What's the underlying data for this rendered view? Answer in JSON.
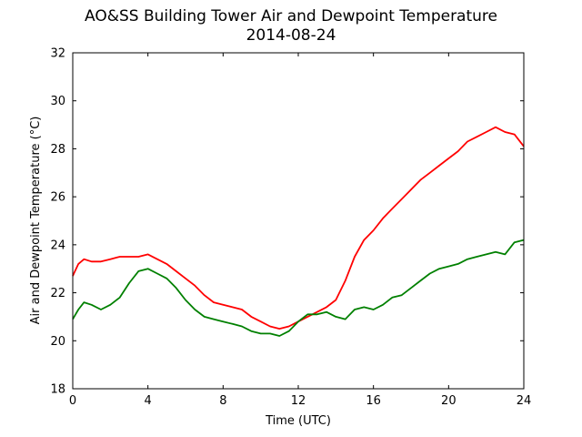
{
  "chart_data": {
    "type": "line",
    "title": "AO&SS Building Tower Air and Dewpoint Temperature",
    "subtitle": "2014-08-24",
    "xlabel": "Time (UTC)",
    "ylabel": "Air and Dewpoint Temperature (°C)",
    "xlim": [
      0,
      24
    ],
    "ylim": [
      18,
      32
    ],
    "xticks": [
      0,
      4,
      8,
      12,
      16,
      20,
      24
    ],
    "yticks": [
      18,
      20,
      22,
      24,
      26,
      28,
      30,
      32
    ],
    "grid": false,
    "series": [
      {
        "color": "#ff0000",
        "x": [
          0,
          0.3,
          0.6,
          1,
          1.5,
          2,
          2.5,
          3,
          3.5,
          4,
          4.5,
          5,
          5.5,
          6,
          6.5,
          7,
          7.5,
          8,
          8.5,
          9,
          9.5,
          10,
          10.5,
          11,
          11.5,
          12,
          12.5,
          13,
          13.5,
          14,
          14.5,
          15,
          15.5,
          16,
          16.5,
          17,
          17.5,
          18,
          18.5,
          19,
          19.5,
          20,
          20.5,
          21,
          21.5,
          22,
          22.5,
          23,
          23.5,
          24
        ],
        "y": [
          22.7,
          23.2,
          23.4,
          23.3,
          23.3,
          23.4,
          23.5,
          23.5,
          23.5,
          23.6,
          23.4,
          23.2,
          22.9,
          22.6,
          22.3,
          21.9,
          21.6,
          21.5,
          21.4,
          21.3,
          21.0,
          20.8,
          20.6,
          20.5,
          20.6,
          20.8,
          21.0,
          21.2,
          21.4,
          21.7,
          22.5,
          23.5,
          24.2,
          24.6,
          25.1,
          25.5,
          25.9,
          26.3,
          26.7,
          27.0,
          27.3,
          27.6,
          27.9,
          28.3,
          28.5,
          28.7,
          28.9,
          28.7,
          28.6,
          28.1
        ]
      },
      {
        "color": "#008000",
        "x": [
          0,
          0.3,
          0.6,
          1,
          1.5,
          2,
          2.5,
          3,
          3.5,
          4,
          4.5,
          5,
          5.5,
          6,
          6.5,
          7,
          7.5,
          8,
          8.5,
          9,
          9.5,
          10,
          10.5,
          11,
          11.5,
          12,
          12.5,
          13,
          13.5,
          14,
          14.5,
          15,
          15.5,
          16,
          16.5,
          17,
          17.5,
          18,
          18.5,
          19,
          19.5,
          20,
          20.5,
          21,
          21.5,
          22,
          22.5,
          23,
          23.5,
          24
        ],
        "y": [
          20.9,
          21.3,
          21.6,
          21.5,
          21.3,
          21.5,
          21.8,
          22.4,
          22.9,
          23.0,
          22.8,
          22.6,
          22.2,
          21.7,
          21.3,
          21.0,
          20.9,
          20.8,
          20.7,
          20.6,
          20.4,
          20.3,
          20.3,
          20.2,
          20.4,
          20.8,
          21.1,
          21.1,
          21.2,
          21.0,
          20.9,
          21.3,
          21.4,
          21.3,
          21.5,
          21.8,
          21.9,
          22.2,
          22.5,
          22.8,
          23.0,
          23.1,
          23.2,
          23.4,
          23.5,
          23.6,
          23.7,
          23.6,
          24.1,
          24.2
        ]
      }
    ]
  }
}
